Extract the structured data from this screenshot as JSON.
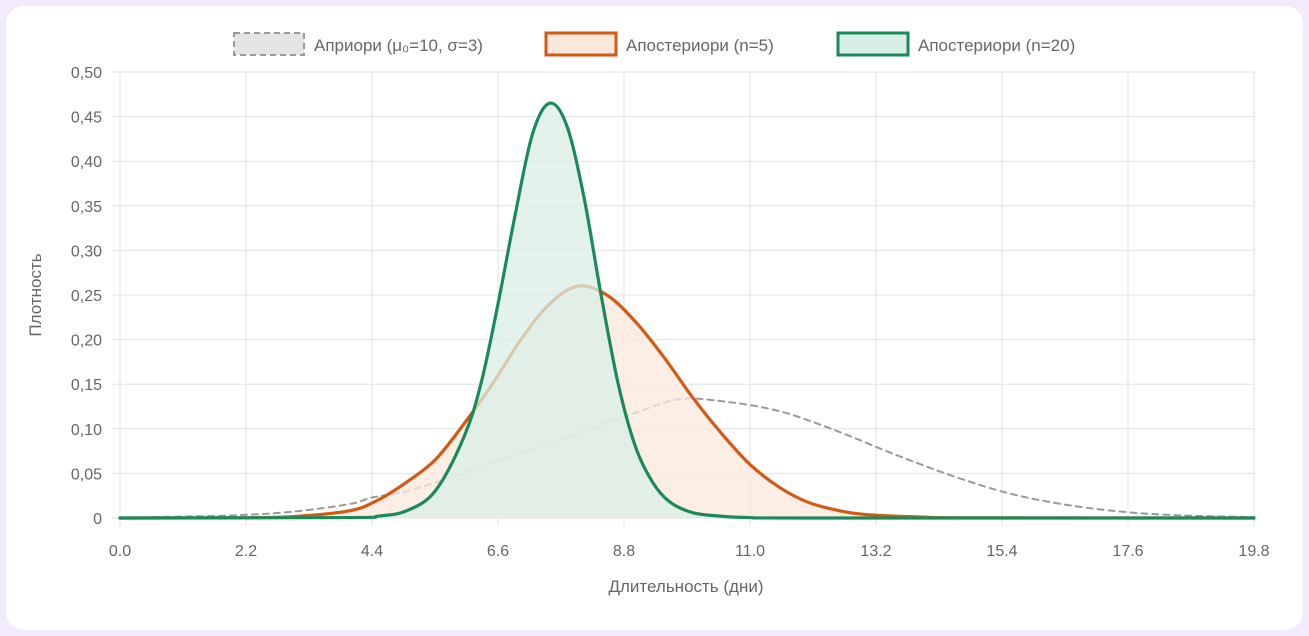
{
  "chart_data": {
    "type": "area",
    "xlabel": "Длительность (дни)",
    "ylabel": "Плотность",
    "xlim": [
      0,
      19.8
    ],
    "ylim": [
      0,
      0.5
    ],
    "x_ticks": [
      "0.0",
      "2.2",
      "4.4",
      "6.6",
      "8.8",
      "11.0",
      "13.2",
      "15.4",
      "17.6",
      "19.8"
    ],
    "y_ticks": [
      "0",
      "0,05",
      "0,10",
      "0,15",
      "0,20",
      "0,25",
      "0,30",
      "0,35",
      "0,40",
      "0,45",
      "0,50"
    ],
    "grid": true,
    "legend_position": "top",
    "series": [
      {
        "name": "Априори (μ₀=10, σ=3)",
        "style": "dashed",
        "filled": false,
        "color": "#9a9a9a",
        "fill": "#e4e4e4",
        "x": [
          0,
          1,
          2,
          3,
          4,
          4.4,
          5,
          6,
          7,
          8,
          9,
          9.75,
          10.5,
          11.5,
          12.5,
          13.5,
          14.5,
          15.5,
          16.5,
          17.5,
          18.5,
          19.8
        ],
        "y": [
          0.0003,
          0.0015,
          0.003,
          0.007,
          0.0155,
          0.023,
          0.03,
          0.05,
          0.073,
          0.095,
          0.118,
          0.133,
          0.131,
          0.12,
          0.098,
          0.072,
          0.048,
          0.028,
          0.015,
          0.007,
          0.003,
          0.001
        ]
      },
      {
        "name": "Апостериори (n=5)",
        "style": "solid",
        "filled": true,
        "color": "#d35a14",
        "fill": "#fbe7dc",
        "x": [
          0,
          2,
          3,
          4,
          4.5,
          5,
          5.5,
          6,
          6.5,
          7,
          7.5,
          8,
          8.5,
          9,
          9.5,
          10,
          10.5,
          11,
          11.5,
          12,
          12.5,
          13,
          14,
          15,
          19.8
        ],
        "y": [
          0,
          0.0002,
          0.0015,
          0.008,
          0.02,
          0.04,
          0.065,
          0.105,
          0.15,
          0.2,
          0.24,
          0.26,
          0.25,
          0.22,
          0.18,
          0.135,
          0.095,
          0.06,
          0.035,
          0.018,
          0.009,
          0.004,
          0.001,
          0.0002,
          0
        ]
      },
      {
        "name": "Апостериори (n=20)",
        "style": "solid",
        "filled": true,
        "color": "#1b8a5a",
        "fill": "#d9efe5",
        "x": [
          0,
          4,
          4.5,
          5,
          5.5,
          6,
          6.3,
          6.6,
          6.9,
          7.2,
          7.5,
          7.8,
          8.1,
          8.4,
          8.7,
          9,
          9.3,
          9.6,
          10,
          10.5,
          11,
          12,
          19.8
        ],
        "y": [
          0,
          0.0005,
          0.002,
          0.008,
          0.03,
          0.09,
          0.15,
          0.24,
          0.34,
          0.43,
          0.465,
          0.44,
          0.36,
          0.25,
          0.15,
          0.08,
          0.04,
          0.018,
          0.006,
          0.002,
          0.0005,
          0,
          0
        ]
      }
    ]
  }
}
